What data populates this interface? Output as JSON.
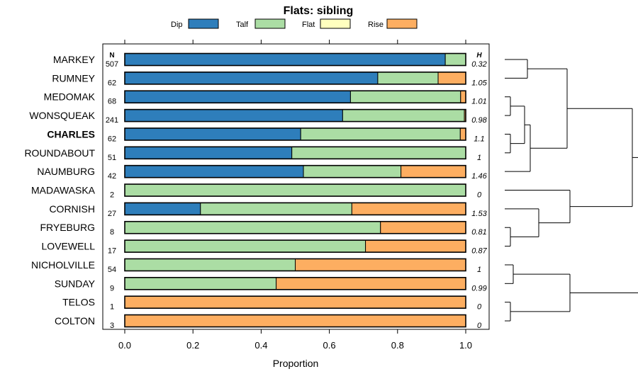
{
  "chart_data": {
    "type": "bar",
    "stacked": true,
    "orientation": "horizontal",
    "title": "Flats: sibling",
    "xlabel": "Proportion",
    "xlim": [
      0,
      1
    ],
    "xticks": [
      "0.0",
      "0.2",
      "0.4",
      "0.6",
      "0.8",
      "1.0"
    ],
    "n_header": "N",
    "h_header": "H",
    "legend": [
      {
        "name": "Dip",
        "color": "#2e7ebb"
      },
      {
        "name": "Talf",
        "color": "#abdda4"
      },
      {
        "name": "Flat",
        "color": "#ffffbf"
      },
      {
        "name": "Rise",
        "color": "#fdae61"
      }
    ],
    "categories": [
      {
        "label": "MARKEY",
        "n": "507",
        "h": "0.32",
        "bold": false,
        "values": [
          0.94,
          0.06,
          0.0,
          0.0
        ]
      },
      {
        "label": "RUMNEY",
        "n": "62",
        "h": "1.05",
        "bold": false,
        "values": [
          0.742,
          0.177,
          0.0,
          0.081
        ]
      },
      {
        "label": "MEDOMAK",
        "n": "68",
        "h": "1.01",
        "bold": false,
        "values": [
          0.662,
          0.323,
          0.0,
          0.015
        ]
      },
      {
        "label": "WONSQUEAK",
        "n": "241",
        "h": "0.98",
        "bold": false,
        "values": [
          0.639,
          0.357,
          0.0,
          0.004
        ]
      },
      {
        "label": "CHARLES",
        "n": "62",
        "h": "1.1",
        "bold": true,
        "values": [
          0.516,
          0.468,
          0.0,
          0.016
        ]
      },
      {
        "label": "ROUNDABOUT",
        "n": "51",
        "h": "1",
        "bold": false,
        "values": [
          0.49,
          0.51,
          0.0,
          0.0
        ]
      },
      {
        "label": "NAUMBURG",
        "n": "42",
        "h": "1.46",
        "bold": false,
        "values": [
          0.524,
          0.286,
          0.0,
          0.19
        ]
      },
      {
        "label": "MADAWASKA",
        "n": "2",
        "h": "0",
        "bold": false,
        "values": [
          0.0,
          1.0,
          0.0,
          0.0
        ]
      },
      {
        "label": "CORNISH",
        "n": "27",
        "h": "1.53",
        "bold": false,
        "values": [
          0.222,
          0.444,
          0.0,
          0.334
        ]
      },
      {
        "label": "FRYEBURG",
        "n": "8",
        "h": "0.81",
        "bold": false,
        "values": [
          0.0,
          0.75,
          0.0,
          0.25
        ]
      },
      {
        "label": "LOVEWELL",
        "n": "17",
        "h": "0.87",
        "bold": false,
        "values": [
          0.0,
          0.706,
          0.0,
          0.294
        ]
      },
      {
        "label": "NICHOLVILLE",
        "n": "54",
        "h": "1",
        "bold": false,
        "values": [
          0.0,
          0.5,
          0.0,
          0.5
        ]
      },
      {
        "label": "SUNDAY",
        "n": "9",
        "h": "0.99",
        "bold": false,
        "values": [
          0.0,
          0.444,
          0.0,
          0.556
        ]
      },
      {
        "label": "TELOS",
        "n": "1",
        "h": "0",
        "bold": false,
        "values": [
          0.0,
          0.0,
          0.0,
          1.0
        ]
      },
      {
        "label": "COLTON",
        "n": "3",
        "h": "0",
        "bold": false,
        "values": [
          0.0,
          0.0,
          0.0,
          1.0
        ]
      }
    ],
    "dendrogram": {
      "leaves": [
        "MARKEY",
        "RUMNEY",
        "MEDOMAK",
        "WONSQUEAK",
        "CHARLES",
        "ROUNDABOUT",
        "NAUMBURG",
        "MADAWASKA",
        "CORNISH",
        "FRYEBURG",
        "LOVEWELL",
        "NICHOLVILLE",
        "SUNDAY",
        "TELOS",
        "COLTON"
      ],
      "merges": [
        {
          "a": "MARKEY",
          "b": "RUMNEY",
          "height": 0.08
        },
        {
          "a": "MEDOMAK",
          "b": "WONSQUEAK",
          "height": 0.02
        },
        {
          "a": "CHARLES",
          "b": "ROUNDABOUT",
          "height": 0.02
        },
        {
          "a": "MEDOMAK+WONSQUEAK",
          "b": "CHARLES+ROUNDABOUT",
          "height": 0.07
        },
        {
          "a": "MEDOMAK+WONSQUEAK+CHARLES+ROUNDABOUT",
          "b": "NAUMBURG",
          "height": 0.09
        },
        {
          "a": "MARKEY+RUMNEY",
          "b": "MEDOMAK..NAUMBURG",
          "height": 0.22
        },
        {
          "a": "FRYEBURG",
          "b": "LOVEWELL",
          "height": 0.02
        },
        {
          "a": "CORNISH",
          "b": "FRYEBURG+LOVEWELL",
          "height": 0.12
        },
        {
          "a": "MADAWASKA",
          "b": "CORNISH+FRYEBURG+LOVEWELL",
          "height": 0.23
        },
        {
          "a": "MARKEY..NAUMBURG",
          "b": "MADAWASKA..LOVEWELL",
          "height": 0.45
        },
        {
          "a": "NICHOLVILLE",
          "b": "SUNDAY",
          "height": 0.03
        },
        {
          "a": "TELOS",
          "b": "COLTON",
          "height": 0.02
        },
        {
          "a": "NICHOLVILLE+SUNDAY",
          "b": "TELOS+COLTON",
          "height": 0.23
        },
        {
          "a": "MARKEY..LOVEWELL",
          "b": "NICHOLVILLE..COLTON",
          "height": 0.48
        }
      ]
    }
  }
}
